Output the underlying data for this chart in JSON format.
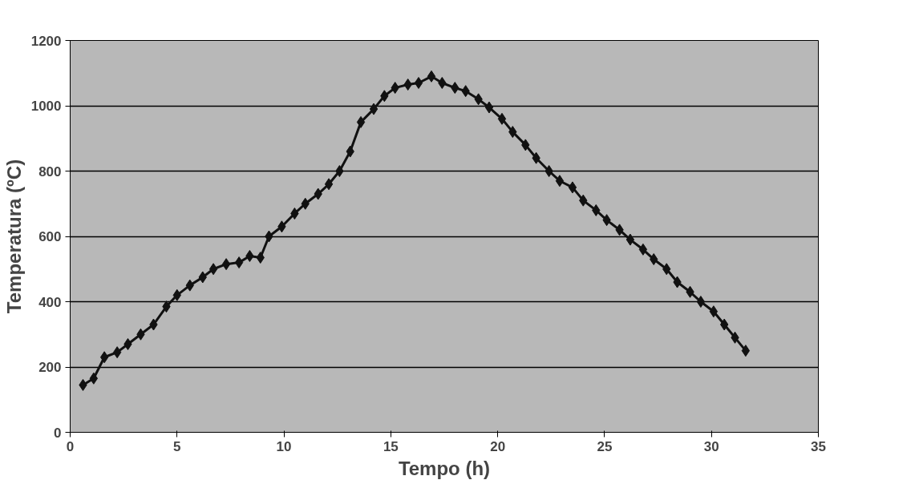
{
  "chart_data": {
    "type": "line",
    "xlabel": "Tempo (h)",
    "ylabel": "Temperatura (ºC)",
    "x": [
      0.6,
      1.1,
      1.6,
      2.2,
      2.7,
      3.3,
      3.9,
      4.5,
      5.0,
      5.6,
      6.2,
      6.7,
      7.3,
      7.9,
      8.4,
      8.9,
      9.3,
      9.9,
      10.5,
      11.0,
      11.6,
      12.1,
      12.6,
      13.1,
      13.6,
      14.2,
      14.7,
      15.2,
      15.8,
      16.3,
      16.9,
      17.4,
      18.0,
      18.5,
      19.1,
      19.6,
      20.2,
      20.7,
      21.3,
      21.8,
      22.4,
      22.9,
      23.5,
      24.0,
      24.6,
      25.1,
      25.7,
      26.2,
      26.8,
      27.3,
      27.9,
      28.4,
      29.0,
      29.5,
      30.1,
      30.6,
      31.1,
      31.6
    ],
    "series": [
      {
        "color": "#111111",
        "values": [
          145,
          165,
          230,
          245,
          270,
          300,
          330,
          385,
          420,
          450,
          475,
          500,
          515,
          520,
          540,
          535,
          600,
          630,
          670,
          700,
          730,
          760,
          800,
          860,
          950,
          990,
          1030,
          1055,
          1065,
          1070,
          1090,
          1070,
          1055,
          1045,
          1020,
          995,
          960,
          920,
          880,
          840,
          800,
          770,
          750,
          710,
          680,
          650,
          620,
          590,
          560,
          530,
          500,
          460,
          430,
          400,
          370,
          330,
          290,
          250
        ]
      }
    ],
    "xlim": [
      0,
      35
    ],
    "xticks": [
      0,
      5,
      10,
      15,
      20,
      25,
      30,
      35
    ],
    "ylim": [
      0,
      1200
    ],
    "yticks": [
      0,
      200,
      400,
      600,
      800,
      1000,
      1200
    ],
    "grid": "y",
    "marker": "diamond",
    "line_style": "solid"
  }
}
